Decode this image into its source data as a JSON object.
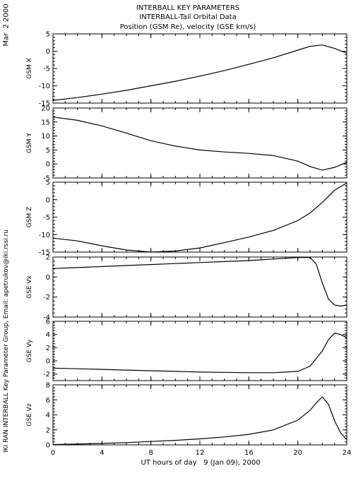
{
  "header": {
    "date_stamp": "Mar  2 2000",
    "side_credit": "IKI RAN INTERBALL Key Parameter Group, Email: apetrukov@iki.rssi.ru"
  },
  "chart_data": {
    "type": "line",
    "title": "INTERBALL KEY PARAMETERS",
    "subtitle": "INTERBALL-Tail Orbital Data",
    "subtitle2": "Position (GSM Re), velocity (GSE km/s)",
    "xlabel": "UT hours of day   9 (Jan 09), 2000",
    "xlim": [
      0,
      24
    ],
    "xticks": [
      0,
      4,
      8,
      12,
      16,
      20,
      24
    ],
    "series_color": "#000000",
    "panels": [
      {
        "ylabel": "GSM X",
        "ylim": [
          -15,
          5
        ],
        "yticks": [
          5,
          0,
          -5,
          -10,
          -15
        ],
        "x": [
          0,
          2,
          4,
          6,
          8,
          10,
          12,
          14,
          16,
          18,
          20,
          21,
          22,
          23,
          24
        ],
        "y": [
          -14.2,
          -13.4,
          -12.4,
          -11.3,
          -10.0,
          -8.7,
          -7.2,
          -5.6,
          -3.8,
          -1.9,
          0.3,
          1.4,
          1.8,
          0.8,
          -0.6
        ]
      },
      {
        "ylabel": "GSM Y",
        "ylim": [
          -5,
          20
        ],
        "yticks": [
          20,
          15,
          10,
          5,
          0,
          -5
        ],
        "x": [
          0,
          2,
          4,
          6,
          8,
          10,
          12,
          14,
          16,
          18,
          20,
          21,
          22,
          23,
          24
        ],
        "y": [
          16.8,
          15.6,
          13.6,
          11.0,
          8.3,
          6.4,
          5.0,
          4.3,
          3.8,
          3.0,
          1.0,
          -0.9,
          -2.2,
          -1.2,
          0.6
        ]
      },
      {
        "ylabel": "GSM Z",
        "ylim": [
          -15,
          5
        ],
        "yticks": [
          5,
          0,
          -5,
          -10,
          -15
        ],
        "x": [
          0,
          2,
          4,
          6,
          8,
          10,
          12,
          14,
          16,
          18,
          20,
          21,
          22,
          23,
          24
        ],
        "y": [
          -11.0,
          -11.8,
          -13.2,
          -14.4,
          -15.0,
          -14.7,
          -13.8,
          -12.3,
          -10.7,
          -8.8,
          -6.0,
          -3.8,
          -0.8,
          2.7,
          4.8
        ]
      },
      {
        "ylabel": "GSE Vx",
        "ylim": [
          -4,
          2
        ],
        "yticks": [
          2,
          0,
          -2,
          -4
        ],
        "x": [
          0,
          2,
          4,
          6,
          8,
          10,
          12,
          14,
          16,
          18,
          20,
          21,
          21.5,
          22,
          22.5,
          23,
          23.5,
          24
        ],
        "y": [
          0.85,
          0.95,
          1.05,
          1.15,
          1.25,
          1.35,
          1.45,
          1.55,
          1.65,
          1.8,
          1.95,
          1.95,
          1.3,
          -0.6,
          -2.2,
          -2.8,
          -2.9,
          -2.8
        ]
      },
      {
        "ylabel": "GSE Vy",
        "ylim": [
          -3,
          6
        ],
        "yticks": [
          6,
          4,
          2,
          0,
          -2
        ],
        "x": [
          0,
          2,
          4,
          6,
          8,
          10,
          12,
          14,
          16,
          18,
          20,
          21,
          22,
          22.5,
          23,
          23.5,
          24
        ],
        "y": [
          -1.1,
          -1.2,
          -1.3,
          -1.4,
          -1.5,
          -1.6,
          -1.7,
          -1.75,
          -1.8,
          -1.8,
          -1.6,
          -0.8,
          1.5,
          3.2,
          4.2,
          4.0,
          3.5
        ]
      },
      {
        "ylabel": "GSE Vz",
        "ylim": [
          0,
          8
        ],
        "yticks": [
          8,
          6,
          4,
          2,
          0
        ],
        "x": [
          0,
          2,
          4,
          6,
          8,
          10,
          12,
          14,
          16,
          18,
          20,
          21,
          21.5,
          22,
          22.5,
          23,
          23.5,
          24
        ],
        "y": [
          0.05,
          0.1,
          0.2,
          0.3,
          0.45,
          0.6,
          0.8,
          1.05,
          1.4,
          2.0,
          3.3,
          4.6,
          5.6,
          6.4,
          5.4,
          3.2,
          1.6,
          0.7
        ]
      }
    ]
  }
}
